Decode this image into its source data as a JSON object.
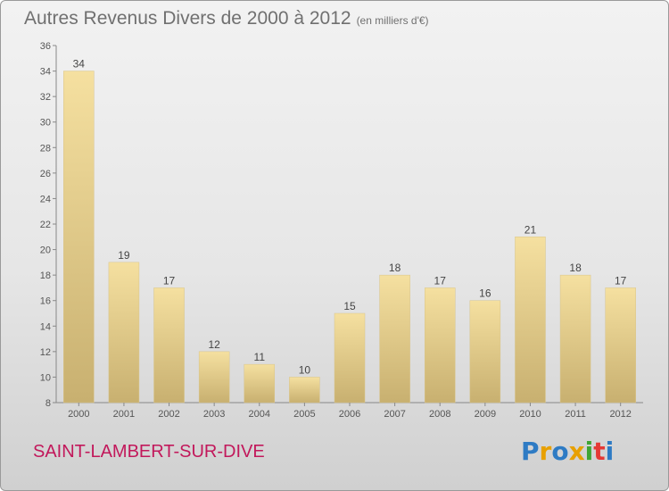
{
  "title": "Autres Revenus Divers de 2000 à 2012",
  "unit": "(en milliers d'€)",
  "commune": "SAINT-LAMBERT-SUR-DIVE",
  "logo": {
    "text": "Proxiti",
    "letter_colors": [
      "#2e7bc4",
      "#e8a000",
      "#2e7bc4",
      "#e8a000",
      "#3fa535",
      "#e53935",
      "#2e7bc4"
    ]
  },
  "colors": {
    "bar_light": "#f5e0a0",
    "bar_dark": "#c8b070",
    "commune": "#c2185b"
  },
  "chart_data": {
    "type": "bar",
    "categories": [
      "2000",
      "2001",
      "2002",
      "2003",
      "2004",
      "2005",
      "2006",
      "2007",
      "2008",
      "2009",
      "2010",
      "2011",
      "2012"
    ],
    "values": [
      34,
      19,
      17,
      12,
      11,
      10,
      15,
      18,
      17,
      16,
      21,
      18,
      17
    ],
    "title": "Autres Revenus Divers de 2000 à 2012",
    "ylim": [
      8,
      36
    ],
    "yticks": [
      8,
      10,
      12,
      14,
      16,
      18,
      20,
      22,
      24,
      26,
      28,
      30,
      32,
      34,
      36
    ],
    "grid": false,
    "data_labels": true
  }
}
